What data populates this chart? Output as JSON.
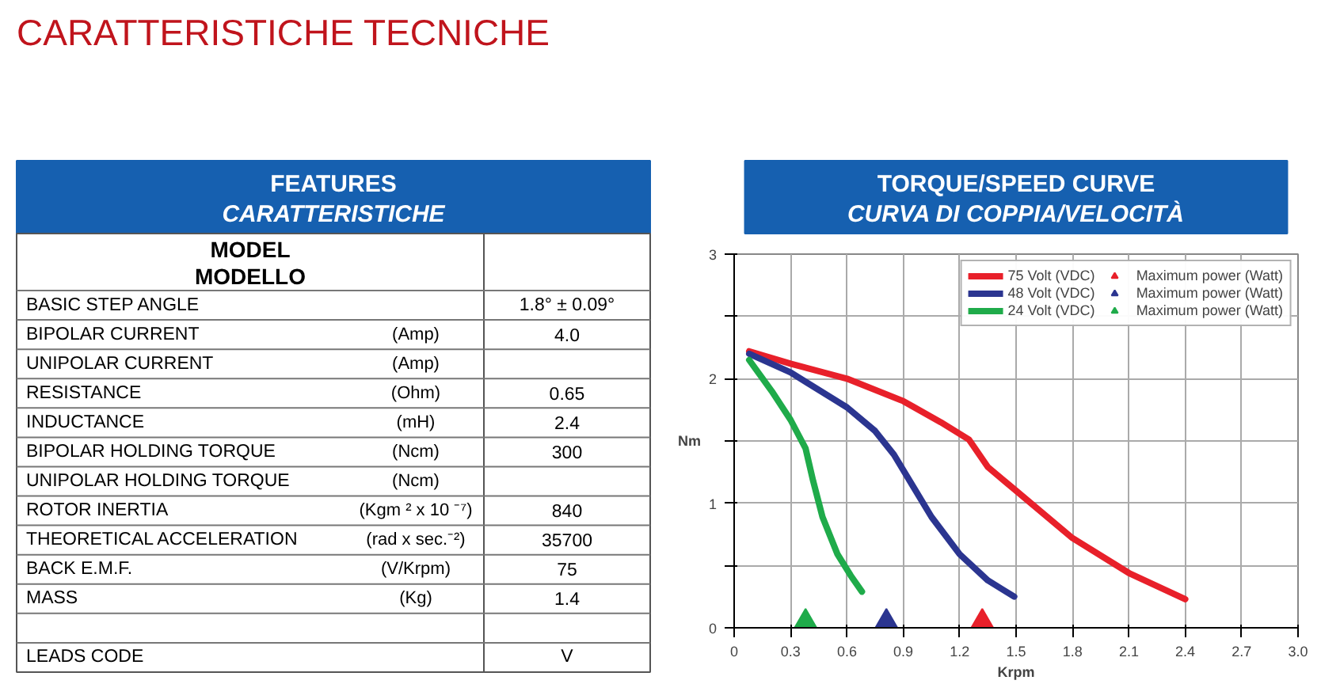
{
  "chart_data": [
    {
      "type": "other",
      "title": "FEATURES",
      "subtitle": "CARATTERISTICHE",
      "annotations": [
        "CARATTERISTICHE TECNICHE",
        "MODEL",
        "MODELLO"
      ],
      "categories": [
        "BASIC STEP ANGLE",
        "BIPOLAR CURRENT",
        "UNIPOLAR CURRENT",
        "RESISTANCE",
        "INDUCTANCE",
        "BIPOLAR HOLDING TORQUE",
        "UNIPOLAR HOLDING TORQUE",
        "ROTOR INERTIA",
        "THEORETICAL ACCELERATION",
        "BACK E.M.F.",
        "MASS",
        null,
        "LEADS CODE"
      ],
      "y2_categories": [
        null,
        "(Amp)",
        "(Amp)",
        "(Ohm)",
        "(mH)",
        "(Ncm)",
        "(Ncm)",
        "(Kgm ² x 10 ⁻⁷)",
        "(rad x sec.⁻²)",
        "(V/Krpm)",
        "(Kg)",
        null,
        null
      ],
      "value_labels": [
        "1.8° ± 0.09°",
        "4.0",
        null,
        "0.65",
        "2.4",
        "300",
        null,
        "840",
        "35700",
        "75",
        "1.4",
        null,
        "V"
      ]
    },
    {
      "type": "line",
      "title": "TORQUE/SPEED CURVE",
      "subtitle": "CURVA DI COPPIA/VELOCITÀ",
      "xlabel": "Krpm",
      "ylabel": "Nm",
      "xlim": [
        0,
        3
      ],
      "ylim": [
        0,
        3
      ],
      "xticks": [
        0,
        0.3,
        0.6,
        0.9,
        1.2,
        1.5,
        1.8,
        2.1,
        2.4,
        2.7,
        {
          "value": 3,
          "label": "3.0"
        }
      ],
      "yticks": [
        0,
        {
          "value": 0.5,
          "label": null
        },
        1,
        {
          "value": 1.5,
          "label": null
        },
        2,
        {
          "value": 2.5,
          "label": null
        },
        3
      ],
      "grid": true,
      "legend": "top right",
      "line_style": "solid",
      "marker": "none",
      "series": [
        {
          "name": "75 Volt (VDC)",
          "color": "#e8202a",
          "x": [
            0.08,
            0.3,
            0.6,
            0.9,
            1.1,
            1.25,
            1.35,
            1.5,
            1.8,
            2.1,
            2.4
          ],
          "values": [
            2.22,
            2.12,
            2.0,
            1.82,
            1.65,
            1.51,
            1.29,
            1.1,
            0.72,
            0.44,
            0.23
          ]
        },
        {
          "type": "scatter",
          "marker": "triangle",
          "name": "Maximum power (Watt)",
          "color": "#e8202a",
          "x": [
            1.32
          ],
          "values": [
            0.05
          ]
        },
        {
          "name": "48 Volt (VDC)",
          "color": "#2b3590",
          "x": [
            0.08,
            0.3,
            0.6,
            0.75,
            0.85,
            0.95,
            1.05,
            1.2,
            1.35,
            1.49
          ],
          "values": [
            2.2,
            2.05,
            1.77,
            1.58,
            1.39,
            1.14,
            0.89,
            0.59,
            0.38,
            0.25
          ]
        },
        {
          "type": "scatter",
          "marker": "triangle",
          "name": "Maximum power (Watt)",
          "color": "#2b3590",
          "x": [
            0.81
          ],
          "values": [
            0.05
          ]
        },
        {
          "name": "24 Volt (VDC)",
          "color": "#1fab4a",
          "x": [
            0.08,
            0.2,
            0.3,
            0.38,
            0.42,
            0.47,
            0.55,
            0.62,
            0.68
          ],
          "values": [
            2.15,
            1.9,
            1.67,
            1.44,
            1.18,
            0.89,
            0.59,
            0.42,
            0.29
          ]
        },
        {
          "type": "scatter",
          "marker": "triangle",
          "name": "Maximum power (Watt)",
          "color": "#1fab4a",
          "x": [
            0.38
          ],
          "values": [
            0.05
          ]
        }
      ]
    }
  ]
}
